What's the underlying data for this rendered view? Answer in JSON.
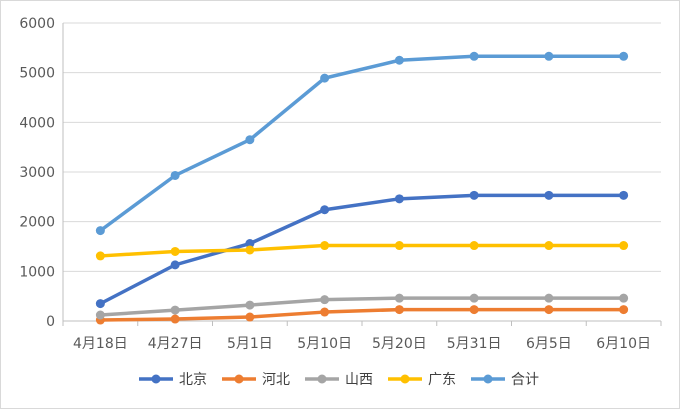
{
  "chart_data": {
    "type": "line",
    "title": "",
    "xlabel": "",
    "ylabel": "",
    "categories": [
      "4月18日",
      "4月27日",
      "5月1日",
      "5月10日",
      "5月20日",
      "5月31日",
      "6月5日",
      "6月10日"
    ],
    "ylim": [
      0,
      6000
    ],
    "yticks": [
      0,
      1000,
      2000,
      3000,
      4000,
      5000,
      6000
    ],
    "grid": true,
    "legend_position": "bottom",
    "series": [
      {
        "name": "北京",
        "color": "#4472c4",
        "values": [
          350,
          1130,
          1560,
          2240,
          2460,
          2530,
          2530,
          2530
        ]
      },
      {
        "name": "河北",
        "color": "#ed7d31",
        "values": [
          20,
          40,
          80,
          180,
          230,
          230,
          230,
          230
        ]
      },
      {
        "name": "山西",
        "color": "#a5a5a5",
        "values": [
          120,
          220,
          320,
          430,
          460,
          460,
          460,
          460
        ]
      },
      {
        "name": "广东",
        "color": "#ffc000",
        "values": [
          1310,
          1400,
          1430,
          1520,
          1520,
          1520,
          1520,
          1520
        ]
      },
      {
        "name": "合计",
        "color": "#5b9bd5",
        "values": [
          1820,
          2930,
          3650,
          4890,
          5250,
          5330,
          5330,
          5330
        ]
      }
    ]
  }
}
